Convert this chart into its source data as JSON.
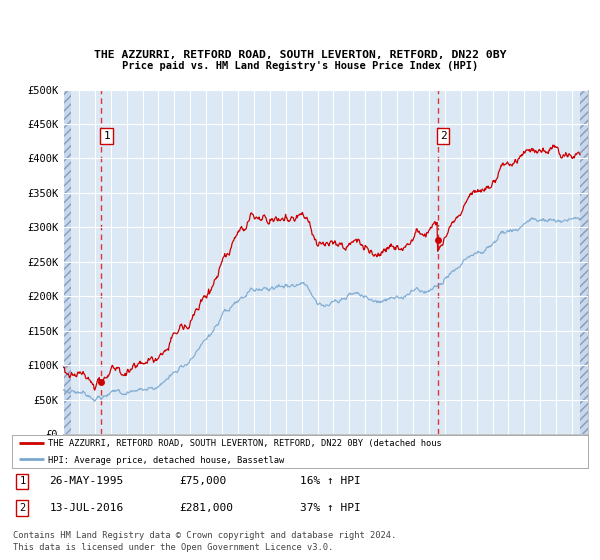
{
  "title1": "THE AZZURRI, RETFORD ROAD, SOUTH LEVERTON, RETFORD, DN22 0BY",
  "title2": "Price paid vs. HM Land Registry's House Price Index (HPI)",
  "bg_color": "#dce9f5",
  "hatch_color": "#c8d8ec",
  "grid_color": "#ffffff",
  "red_line_color": "#cc0000",
  "blue_line_color": "#7aa8d0",
  "sale1_year": 1995.38,
  "sale1_price": 75000,
  "sale2_year": 2016.54,
  "sale2_price": 281000,
  "legend_label1": "THE AZZURRI, RETFORD ROAD, SOUTH LEVERTON, RETFORD, DN22 0BY (detached hous",
  "legend_label2": "HPI: Average price, detached house, Bassetlaw",
  "footer1": "Contains HM Land Registry data © Crown copyright and database right 2024.",
  "footer2": "This data is licensed under the Open Government Licence v3.0.",
  "sale1_date": "26-MAY-1995",
  "sale1_pct": "16% ↑ HPI",
  "sale2_date": "13-JUL-2016",
  "sale2_pct": "37% ↑ HPI",
  "ylim_max": 500000,
  "xmin": 1993,
  "xmax": 2026
}
